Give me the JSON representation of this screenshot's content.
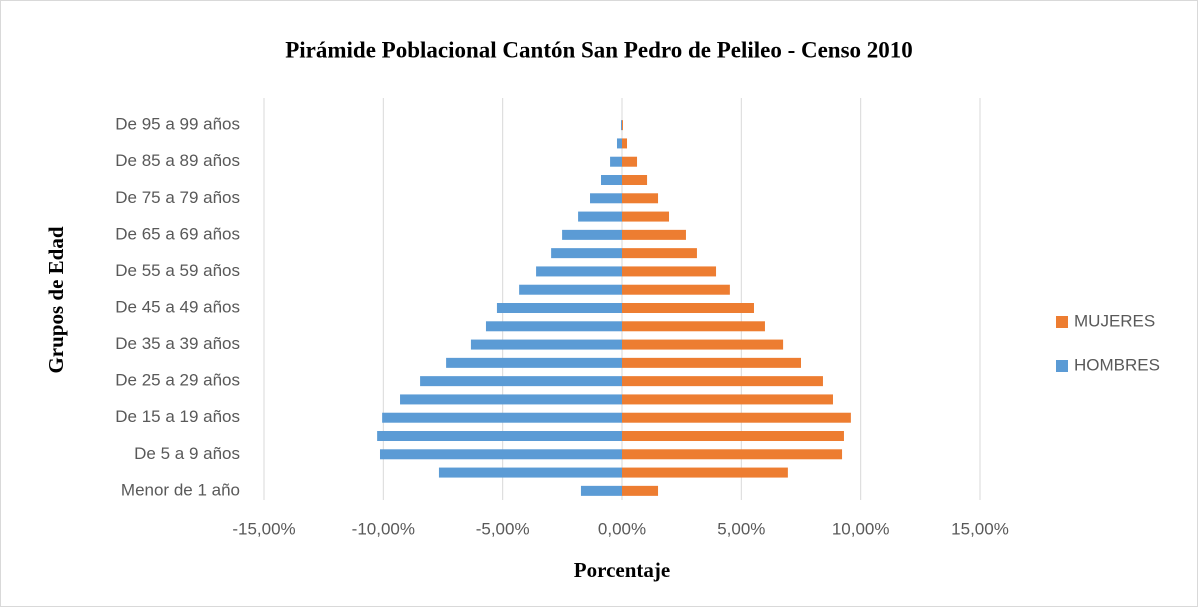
{
  "chart_data": {
    "type": "bar",
    "orientation": "horizontal",
    "stacked": "diverging",
    "title": "Pirámide Poblacional Cantón San Pedro de Pelileo - Censo 2010",
    "x_label": "Porcentaje",
    "y_label": "Grupos de Edad",
    "categories": [
      "Menor de 1 año",
      null,
      "De 5 a 9 años",
      null,
      "De 15 a 19 años",
      null,
      "De 25 a 29 años",
      null,
      "De 35 a 39 años",
      null,
      "De 45 a 49 años",
      null,
      "De 55 a 59 años",
      null,
      "De 65 a 69 años",
      null,
      "De 75 a 79 años",
      null,
      "De 85 a 89 años",
      null,
      "De 95 a 99 años"
    ],
    "series": [
      {
        "name": "HOMBRES",
        "color": "#5b9bd5",
        "values": [
          -1.72,
          -7.67,
          -10.14,
          -10.26,
          -10.05,
          -9.3,
          -8.46,
          -7.37,
          -6.33,
          -5.7,
          -5.24,
          -4.31,
          -3.6,
          -2.97,
          -2.51,
          -1.84,
          -1.34,
          -0.88,
          -0.5,
          -0.21,
          -0.04
        ]
      },
      {
        "name": "MUJERES",
        "color": "#ed7d31",
        "values": [
          1.51,
          6.95,
          9.22,
          9.3,
          9.59,
          8.84,
          8.42,
          7.5,
          6.75,
          5.99,
          5.53,
          4.52,
          3.94,
          3.14,
          2.68,
          1.97,
          1.51,
          1.05,
          0.63,
          0.21,
          0.04
        ]
      }
    ],
    "xlim": [
      -15,
      15
    ],
    "xticks": [
      {
        "value": -15,
        "label": "-15,00%"
      },
      {
        "value": -10,
        "label": "-10,00%"
      },
      {
        "value": -5,
        "label": "-5,00%"
      },
      {
        "value": 0,
        "label": "0,00%"
      },
      {
        "value": 5,
        "label": "5,00%"
      },
      {
        "value": 10,
        "label": "10,00%"
      },
      {
        "value": 15,
        "label": "15,00%"
      }
    ],
    "grid": true,
    "legend": "right"
  }
}
